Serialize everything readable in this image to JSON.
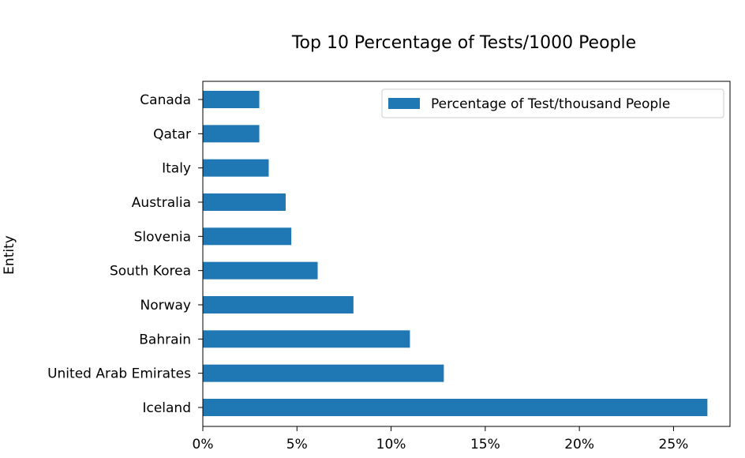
{
  "chart_data": {
    "type": "bar",
    "orientation": "horizontal",
    "title": "Top 10 Percentage of Tests/1000 People",
    "xlabel": "",
    "ylabel": "Entity",
    "categories": [
      "Canada",
      "Qatar",
      "Italy",
      "Australia",
      "Slovenia",
      "South Korea",
      "Norway",
      "Bahrain",
      "United Arab Emirates",
      "Iceland"
    ],
    "series": [
      {
        "name": "Percentage of Test/thousand People",
        "color": "#1f77b4",
        "values": [
          3.0,
          3.0,
          3.5,
          4.4,
          4.7,
          6.1,
          8.0,
          11.0,
          12.8,
          26.8
        ]
      }
    ],
    "xlim": [
      0,
      28
    ],
    "xticks": [
      0,
      5,
      10,
      15,
      20,
      25
    ],
    "xtick_labels": [
      "0%",
      "5%",
      "10%",
      "15%",
      "20%",
      "25%"
    ],
    "grid": false,
    "legend_position": "top-right"
  }
}
